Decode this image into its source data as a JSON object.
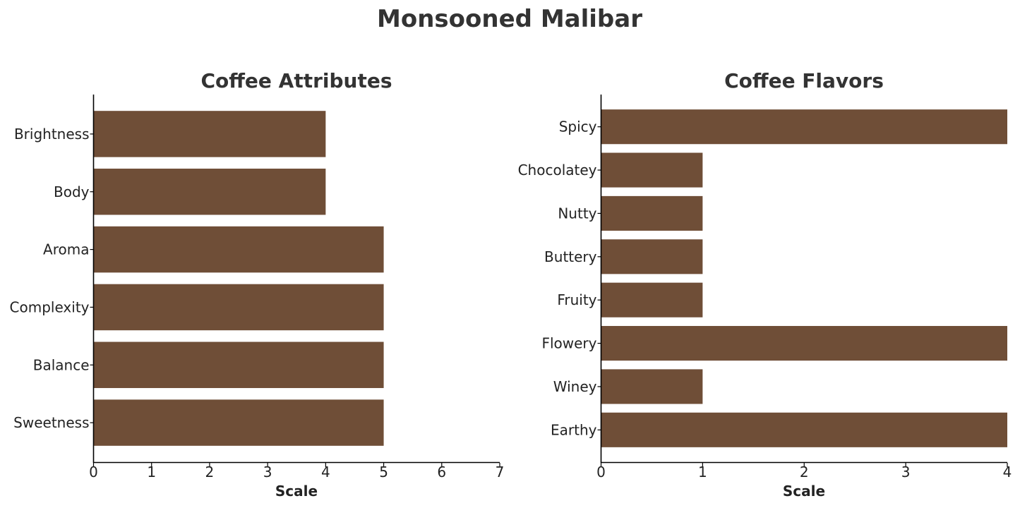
{
  "figure_title": "Monsooned Malibar",
  "bar_color": "#6f4e37",
  "chart_data": [
    {
      "type": "bar",
      "orientation": "horizontal",
      "title": "Coffee Attributes",
      "xlabel": "Scale",
      "categories": [
        "Brightness",
        "Body",
        "Aroma",
        "Complexity",
        "Balance",
        "Sweetness"
      ],
      "values": [
        4,
        4,
        5,
        5,
        5,
        5
      ],
      "xlim": [
        0,
        7
      ],
      "xticks": [
        "0",
        "1",
        "2",
        "3",
        "4",
        "5",
        "6",
        "7"
      ],
      "grid": false
    },
    {
      "type": "bar",
      "orientation": "horizontal",
      "title": "Coffee Flavors",
      "xlabel": "Scale",
      "categories": [
        "Spicy",
        "Chocolatey",
        "Nutty",
        "Buttery",
        "Fruity",
        "Flowery",
        "Winey",
        "Earthy"
      ],
      "values": [
        4,
        1,
        1,
        1,
        1,
        4,
        1,
        4
      ],
      "xlim": [
        0,
        4
      ],
      "xticks": [
        "0",
        "1",
        "2",
        "3",
        "4"
      ],
      "grid": false
    }
  ]
}
